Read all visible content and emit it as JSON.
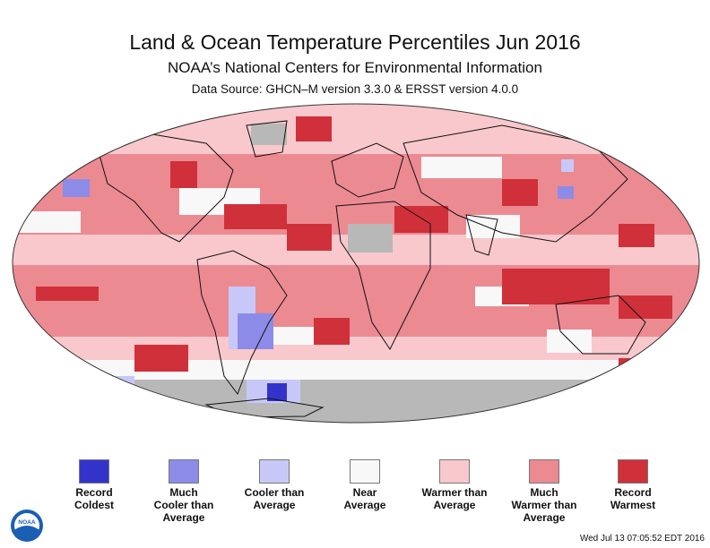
{
  "title": "Land & Ocean Temperature Percentiles Jun 2016",
  "subtitle": "NOAA’s National Centers for Environmental Information",
  "source": "Data Source: GHCN–M version 3.3.0 & ERSST version 4.0.0",
  "timestamp": "Wed Jul 13 07:05:52 EDT 2016",
  "logo_text": "NOAA",
  "colors": {
    "record_coldest": "#3333cc",
    "much_cooler": "#8c8ce8",
    "cooler": "#c8c8f8",
    "near": "#f8f8f8",
    "warmer": "#f8c8cc",
    "much_warmer": "#ec8a92",
    "record_warmest": "#d0303a",
    "no_data": "#b8b8b8"
  },
  "legend": [
    {
      "label": "Record\nColdest",
      "color": "#3333cc"
    },
    {
      "label": "Much\nCooler than\nAverage",
      "color": "#8c8ce8"
    },
    {
      "label": "Cooler than\nAverage",
      "color": "#c8c8f8"
    },
    {
      "label": "Near\nAverage",
      "color": "#f8f8f8"
    },
    {
      "label": "Warmer than\nAverage",
      "color": "#f8c8cc"
    },
    {
      "label": "Much\nWarmer than\nAverage",
      "color": "#ec8a92"
    },
    {
      "label": "Record\nWarmest",
      "color": "#d0303a"
    }
  ]
}
